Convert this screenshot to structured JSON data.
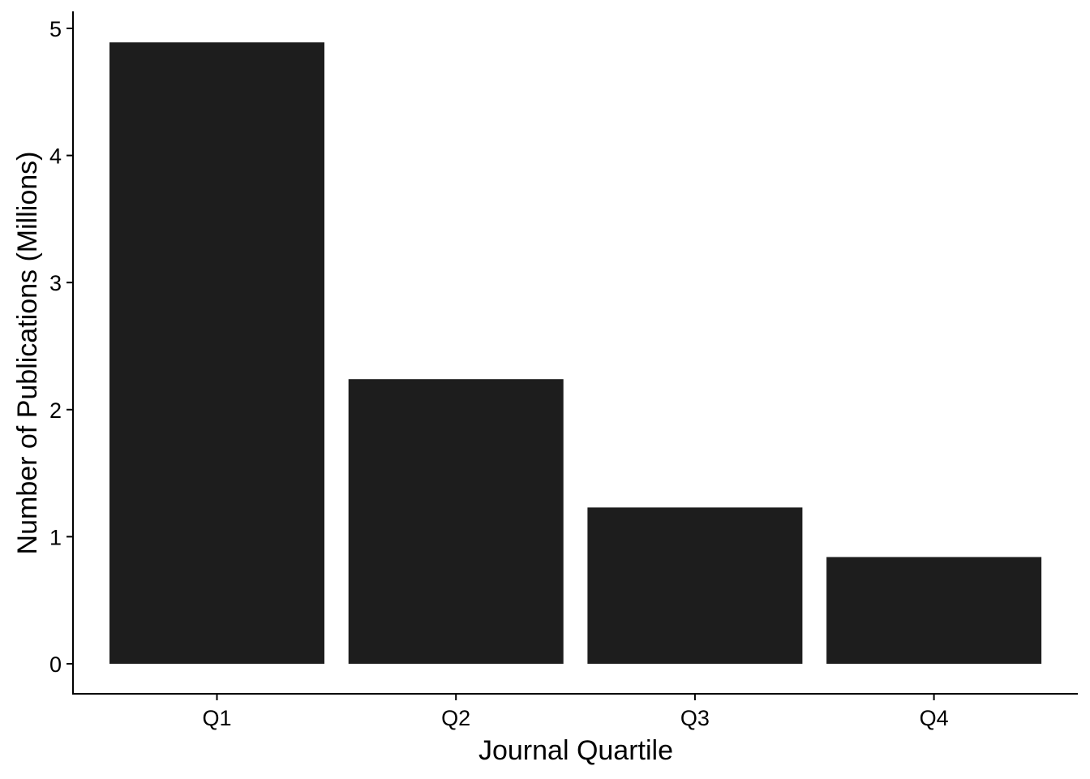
{
  "chart_data": {
    "type": "bar",
    "title": "",
    "xlabel": "Journal Quartile",
    "ylabel": "Number of Publications (Millions)",
    "categories": [
      "Q1",
      "Q2",
      "Q3",
      "Q4"
    ],
    "values": [
      4.89,
      2.24,
      1.23,
      0.84
    ],
    "ylim": [
      -0.23,
      5.14
    ],
    "yticks": [
      0,
      1,
      2,
      3,
      4,
      5
    ],
    "grid": false,
    "legend": "none",
    "bar_color": "#1d1d1d",
    "axis_color": "#000000"
  }
}
